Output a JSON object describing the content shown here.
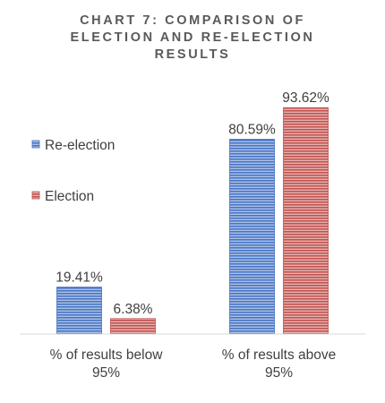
{
  "chart_data": {
    "type": "bar",
    "title": "CHART 7: COMPARISON OF\nELECTION AND RE-ELECTION\nRESULTS",
    "categories": [
      "% of results below 95%",
      "% of results above 95%"
    ],
    "category_lines": [
      [
        "% of results below",
        "95%"
      ],
      [
        "% of results above",
        "95%"
      ]
    ],
    "series": [
      {
        "name": "Re-election",
        "values": [
          19.41,
          80.59
        ],
        "labels": [
          "19.41%",
          "80.59%"
        ],
        "color": "#4472c4"
      },
      {
        "name": "Election",
        "values": [
          6.38,
          93.62
        ],
        "labels": [
          "6.38%",
          "93.62%"
        ],
        "color": "#c0504d"
      }
    ],
    "ylim": [
      0,
      100
    ],
    "grid": false,
    "legend_position": "left",
    "bar_fill": "horizontal-stripes"
  }
}
